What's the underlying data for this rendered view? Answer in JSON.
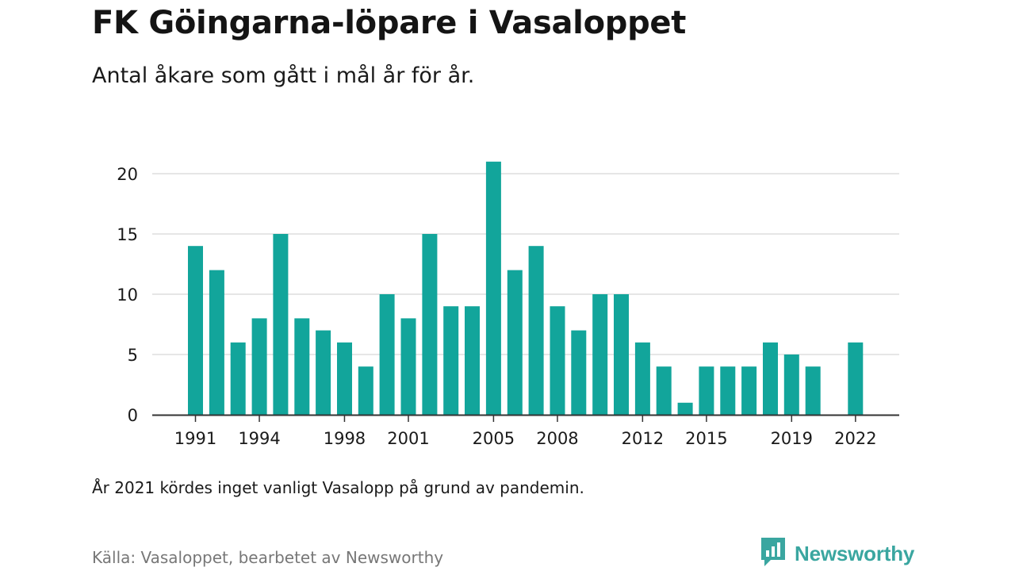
{
  "header": {
    "title": "FK Göingarna-löpare i Vasaloppet",
    "subtitle": "Antal åkare som gått i mål år för år."
  },
  "footer": {
    "note": "År 2021 kördes inget vanligt Vasalopp på grund av pandemin.",
    "source": "Källa: Vasaloppet, bearbetet av Newsworthy",
    "brand": "Newsworthy",
    "brand_icon": "newsworthy-logo-icon"
  },
  "colors": {
    "bar": "#12a59b",
    "grid": "#dddddd",
    "axis": "#333333",
    "brand": "#3aa6a0"
  },
  "chart_data": {
    "type": "bar",
    "categories": [
      1991,
      1992,
      1993,
      1994,
      1995,
      1996,
      1997,
      1998,
      1999,
      2000,
      2001,
      2002,
      2003,
      2004,
      2005,
      2006,
      2007,
      2008,
      2009,
      2010,
      2011,
      2012,
      2013,
      2014,
      2015,
      2016,
      2017,
      2018,
      2019,
      2020,
      2021,
      2022
    ],
    "values": [
      14,
      12,
      6,
      8,
      15,
      8,
      7,
      6,
      4,
      10,
      8,
      15,
      9,
      9,
      21,
      12,
      14,
      9,
      7,
      10,
      10,
      6,
      4,
      1,
      4,
      4,
      4,
      6,
      5,
      4,
      null,
      6
    ],
    "x_tick_labels": [
      "1991",
      "1994",
      "1998",
      "2001",
      "2005",
      "2008",
      "2012",
      "2015",
      "2019",
      "2022"
    ],
    "y_ticks": [
      0,
      5,
      10,
      15,
      20
    ],
    "ylim": [
      0,
      21
    ],
    "grid": true,
    "legend": "none"
  }
}
